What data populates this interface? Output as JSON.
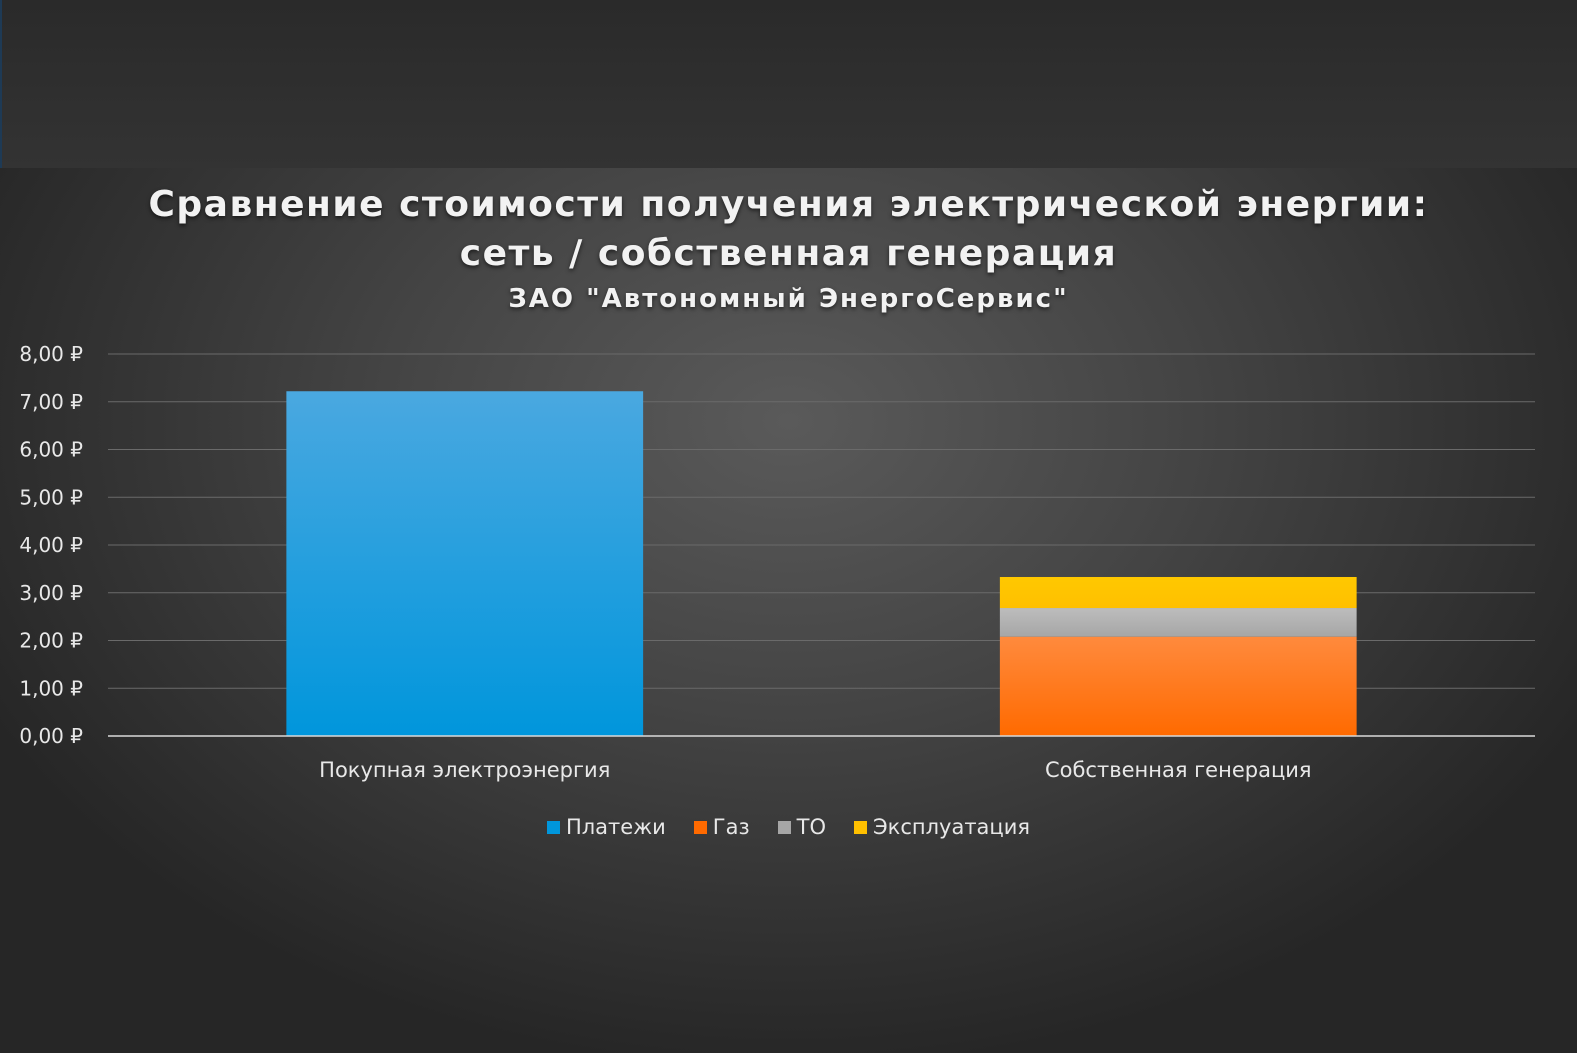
{
  "chart_data": {
    "type": "bar",
    "stacked": true,
    "title_line1": "Сравнение стоимости получения электрической энергии:",
    "title_line2": "сеть / собственная генерация",
    "subtitle": "ЗАО \"Автономный ЭнергоСервис\"",
    "categories": [
      "Покупная электроэнергия",
      "Собственная генерация"
    ],
    "series": [
      {
        "name": "Платежи",
        "values": [
          7.22,
          0
        ],
        "color": "#0096dc",
        "color_top": "#4aa8e0"
      },
      {
        "name": "Газ",
        "values": [
          0,
          2.08
        ],
        "color": "#ff6a00",
        "color_top": "#ff8a3d"
      },
      {
        "name": "ТО",
        "values": [
          0,
          0.6
        ],
        "color": "#a6a6a6",
        "color_top": "#bdbdbd"
      },
      {
        "name": "Эксплуатация",
        "values": [
          0,
          0.65
        ],
        "color": "#ffc000",
        "color_top": "#ffc800"
      }
    ],
    "yticks": [
      "0,00 ₽",
      "1,00 ₽",
      "2,00 ₽",
      "3,00 ₽",
      "4,00 ₽",
      "5,00 ₽",
      "6,00 ₽",
      "7,00 ₽",
      "8,00 ₽"
    ],
    "ylim": [
      0,
      8
    ],
    "grid": true,
    "legend_position": "bottom"
  }
}
